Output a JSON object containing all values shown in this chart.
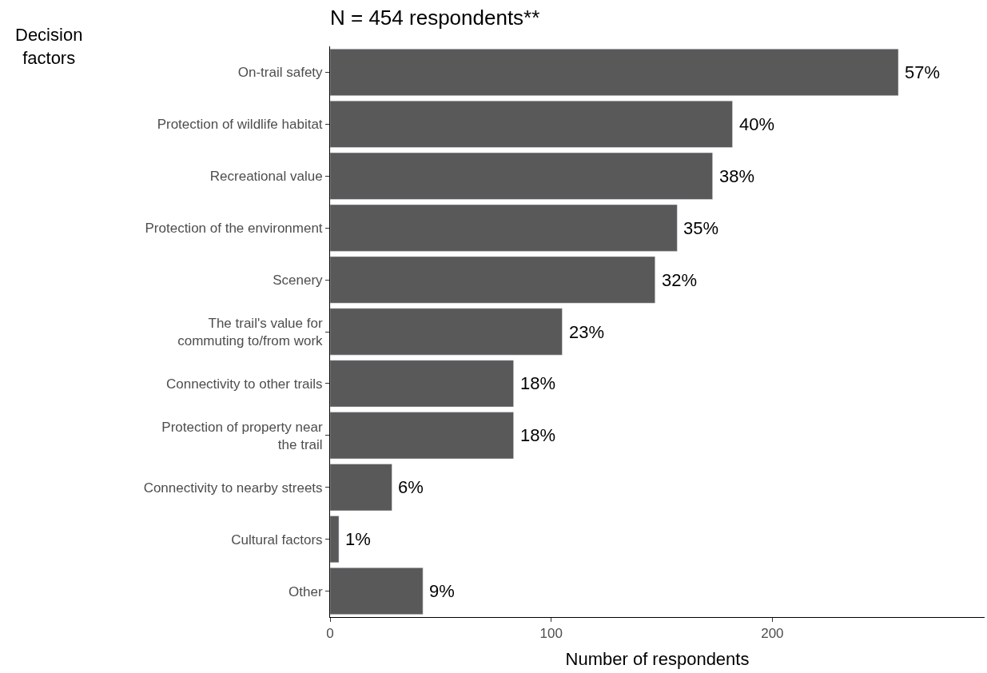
{
  "chart_data": {
    "type": "bar",
    "orientation": "horizontal",
    "title": "N = 454 respondents**",
    "xlabel": "Number of respondents",
    "ylabel": "Decision\nfactors",
    "categories": [
      "On-trail safety",
      "Protection of wildlife habitat",
      "Recreational value",
      "Protection of the environment",
      "Scenery",
      "The trail's value for\ncommuting to/from work",
      "Connectivity to other trails",
      "Protection of property near\nthe trail",
      "Connectivity to nearby streets",
      "Cultural factors",
      "Other"
    ],
    "values": [
      257,
      182,
      173,
      157,
      147,
      105,
      83,
      83,
      28,
      4,
      42
    ],
    "annotations": [
      {
        "text": "57%",
        "x": 257,
        "y": "On-trail safety"
      },
      {
        "text": "40%",
        "x": 182,
        "y": "Protection of wildlife habitat"
      },
      {
        "text": "38%",
        "x": 173,
        "y": "Recreational value"
      },
      {
        "text": "35%",
        "x": 157,
        "y": "Protection of the environment"
      },
      {
        "text": "32%",
        "x": 147,
        "y": "Scenery"
      },
      {
        "text": "23%",
        "x": 105,
        "y": "The trail's value for\ncommuting to/from work"
      },
      {
        "text": "18%",
        "x": 83,
        "y": "Connectivity to other trails"
      },
      {
        "text": "18%",
        "x": 83,
        "y": "Protection of property near\nthe trail"
      },
      {
        "text": "6%",
        "x": 28,
        "y": "Connectivity to nearby streets"
      },
      {
        "text": "1%",
        "x": 4,
        "y": "Cultural factors"
      },
      {
        "text": "9%",
        "x": 42,
        "y": "Other"
      }
    ],
    "color": "#595959",
    "xlim": [
      0,
      296
    ],
    "xticks": [
      0,
      100,
      200
    ]
  }
}
